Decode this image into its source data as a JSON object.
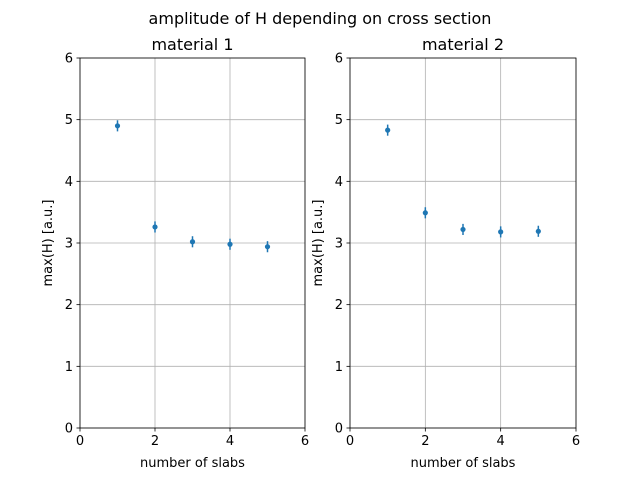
{
  "figure": {
    "suptitle": "amplitude of H depending on cross section"
  },
  "colors": {
    "marker": "#1f77b4",
    "grid": "#b0b0b0",
    "axis": "#000000"
  },
  "chart_data": [
    {
      "type": "scatter",
      "title": "material 1",
      "xlabel": "number of slabs",
      "ylabel": "max(H) [a.u.]",
      "xlim": [
        0,
        6
      ],
      "ylim": [
        0,
        6
      ],
      "xticks": [
        0,
        2,
        4,
        6
      ],
      "yticks": [
        0,
        1,
        2,
        3,
        4,
        5,
        6
      ],
      "grid": true,
      "series": [
        {
          "x": [
            1,
            2,
            3,
            4,
            5
          ],
          "y": [
            4.9,
            3.26,
            3.02,
            2.98,
            2.94
          ],
          "yerr": [
            0.09,
            0.09,
            0.09,
            0.09,
            0.09
          ]
        }
      ]
    },
    {
      "type": "scatter",
      "title": "material 2",
      "xlabel": "number of slabs",
      "ylabel": "max(H) [a.u.]",
      "xlim": [
        0,
        6
      ],
      "ylim": [
        0,
        6
      ],
      "xticks": [
        0,
        2,
        4,
        6
      ],
      "yticks": [
        0,
        1,
        2,
        3,
        4,
        5,
        6
      ],
      "grid": true,
      "series": [
        {
          "x": [
            1,
            2,
            3,
            4,
            5
          ],
          "y": [
            4.83,
            3.49,
            3.22,
            3.18,
            3.19
          ],
          "yerr": [
            0.09,
            0.09,
            0.09,
            0.09,
            0.09
          ]
        }
      ]
    }
  ]
}
